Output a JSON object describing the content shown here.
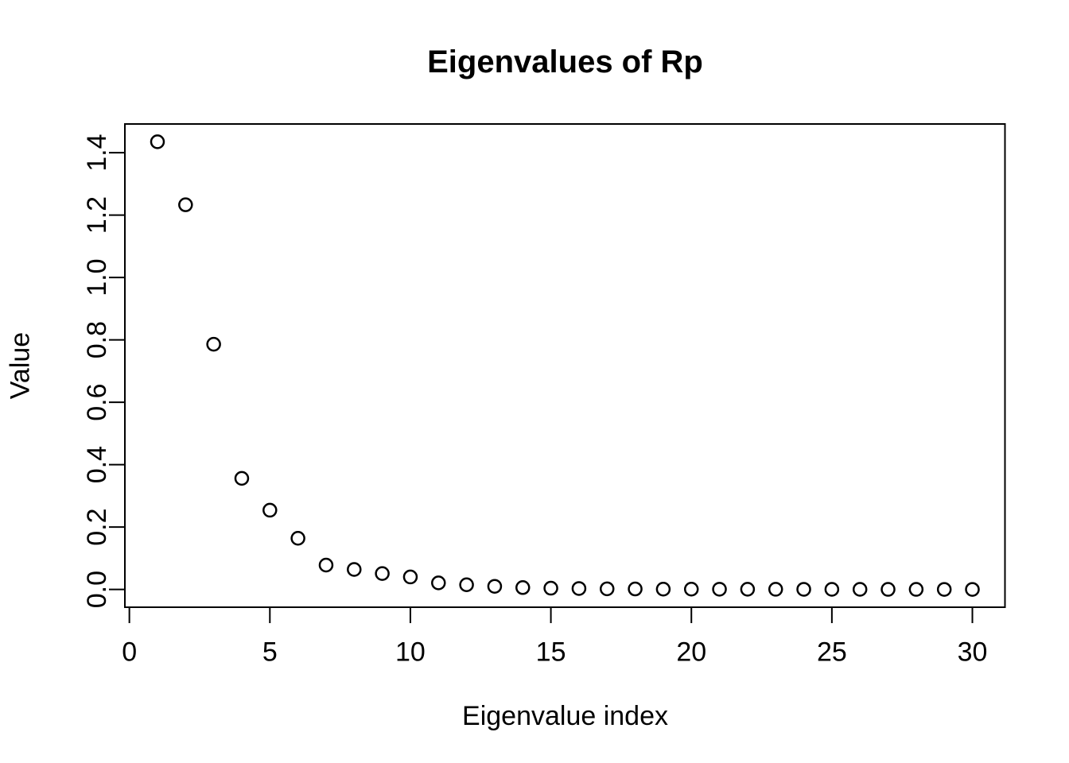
{
  "chart_data": {
    "type": "scatter",
    "title": "Eigenvalues of Rp",
    "xlabel": "Eigenvalue index",
    "ylabel": "Value",
    "marker": "open-circle",
    "grid": false,
    "legend": "none",
    "colors": {
      "foreground": "#000000",
      "background": "#ffffff"
    },
    "xlim": [
      -0.16,
      31.16
    ],
    "ylim": [
      -0.057,
      1.492
    ],
    "x_ticks": [
      0,
      5,
      10,
      15,
      20,
      25,
      30
    ],
    "x_tick_labels": [
      "0",
      "5",
      "10",
      "15",
      "20",
      "25",
      "30"
    ],
    "y_ticks": [
      0.0,
      0.2,
      0.4,
      0.6,
      0.8,
      1.0,
      1.2,
      1.4
    ],
    "y_tick_labels": [
      "0.0",
      "0.2",
      "0.4",
      "0.6",
      "0.8",
      "1.0",
      "1.2",
      "1.4"
    ],
    "x": [
      1,
      2,
      3,
      4,
      5,
      6,
      7,
      8,
      9,
      10,
      11,
      12,
      13,
      14,
      15,
      16,
      17,
      18,
      19,
      20,
      21,
      22,
      23,
      24,
      25,
      26,
      27,
      28,
      29,
      30
    ],
    "y": [
      1.435,
      1.233,
      0.786,
      0.356,
      0.254,
      0.164,
      0.078,
      0.064,
      0.051,
      0.04,
      0.021,
      0.015,
      0.01,
      0.006,
      0.004,
      0.003,
      0.002,
      0.0015,
      0.001,
      0.001,
      0.0008,
      0.0006,
      0.0005,
      0.0004,
      0.0003,
      0.0003,
      0.0002,
      0.0002,
      0.0001,
      0.0001
    ]
  }
}
